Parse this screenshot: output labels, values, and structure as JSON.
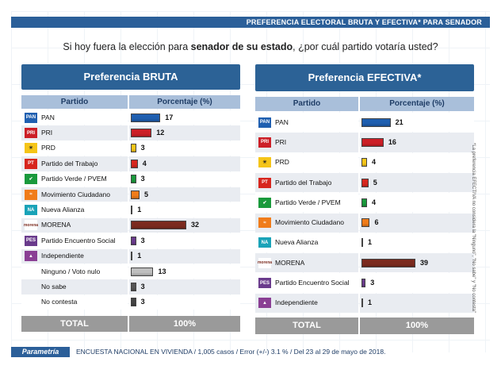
{
  "header": {
    "title": "PREFERENCIA ELECTORAL BRUTA Y EFECTIVA* PARA SENADOR"
  },
  "question": {
    "before": "Si hoy fuera la elección para ",
    "bold": "senador de su estado",
    "after": ", ¿por cuál partido votaría usted?"
  },
  "colors": {
    "header_blue": "#2c6296",
    "column_header": "#a9bfda",
    "total_grey": "#9a9a9a",
    "PAN": "#1f5fb0",
    "PRI": "#cc1f27",
    "PRD": "#f5c518",
    "PT": "#d7261e",
    "PVEM": "#1a9a3c",
    "MC": "#f07c1a",
    "NA": "#19a3b8",
    "MORENA": "#7b2a1e",
    "PES": "#6a3b8c",
    "IND": "#8a3f94",
    "NINGUNO": "#bfbfbf",
    "NOSABE": "#555555",
    "NOCONTESTA": "#444444"
  },
  "side_note": "*La preferencia EFECTIVA no considera la \"Ninguno\", \"No sabe\" y \"No contesta\"",
  "footer": {
    "logo": "Parametría",
    "text": "ENCUESTA NACIONAL EN VIVIENDA / 1,005 casos / Error (+/-) 3.1 % / Del 23 al 29 de mayo de 2018."
  },
  "chart_data": [
    {
      "type": "bar",
      "title": "Preferencia BRUTA",
      "col_party": "Partido",
      "col_pct": "Porcentaje (%)",
      "total_label": "TOTAL",
      "total_value": "100%",
      "rows": [
        {
          "party": "PAN",
          "icon": "pan-logo-icon",
          "color_key": "PAN",
          "value": 17
        },
        {
          "party": "PRI",
          "icon": "pri-logo-icon",
          "color_key": "PRI",
          "value": 12
        },
        {
          "party": "PRD",
          "icon": "prd-logo-icon",
          "color_key": "PRD",
          "value": 3
        },
        {
          "party": "Partido del Trabajo",
          "icon": "pt-logo-icon",
          "color_key": "PT",
          "value": 4
        },
        {
          "party": "Partido Verde / PVEM",
          "icon": "pvem-logo-icon",
          "color_key": "PVEM",
          "value": 3
        },
        {
          "party": "Movimiento Ciudadano",
          "icon": "mc-logo-icon",
          "color_key": "MC",
          "value": 5
        },
        {
          "party": "Nueva Alianza",
          "icon": "na-logo-icon",
          "color_key": "NA",
          "value": 1
        },
        {
          "party": "MORENA",
          "icon": "morena-logo-icon",
          "color_key": "MORENA",
          "value": 32
        },
        {
          "party": "Partido Encuentro Social",
          "icon": "pes-logo-icon",
          "color_key": "PES",
          "value": 3
        },
        {
          "party": "Independiente",
          "icon": "independiente-icon",
          "color_key": "IND",
          "value": 1
        },
        {
          "party": "Ninguno / Voto nulo",
          "icon": "",
          "color_key": "NINGUNO",
          "value": 13
        },
        {
          "party": "No sabe",
          "icon": "",
          "color_key": "NOSABE",
          "value": 3
        },
        {
          "party": "No contesta",
          "icon": "",
          "color_key": "NOCONTESTA",
          "value": 3
        }
      ]
    },
    {
      "type": "bar",
      "title": "Preferencia EFECTIVA*",
      "col_party": "Partido",
      "col_pct": "Porcentaje (%)",
      "total_label": "TOTAL",
      "total_value": "100%",
      "rows": [
        {
          "party": "PAN",
          "icon": "pan-logo-icon",
          "color_key": "PAN",
          "value": 21
        },
        {
          "party": "PRI",
          "icon": "pri-logo-icon",
          "color_key": "PRI",
          "value": 16
        },
        {
          "party": "PRD",
          "icon": "prd-logo-icon",
          "color_key": "PRD",
          "value": 4
        },
        {
          "party": "Partido del Trabajo",
          "icon": "pt-logo-icon",
          "color_key": "PT",
          "value": 5
        },
        {
          "party": "Partido Verde / PVEM",
          "icon": "pvem-logo-icon",
          "color_key": "PVEM",
          "value": 4
        },
        {
          "party": "Movimiento Ciudadano",
          "icon": "mc-logo-icon",
          "color_key": "MC",
          "value": 6
        },
        {
          "party": "Nueva Alianza",
          "icon": "na-logo-icon",
          "color_key": "NA",
          "value": 1
        },
        {
          "party": "MORENA",
          "icon": "morena-logo-icon",
          "color_key": "MORENA",
          "value": 39
        },
        {
          "party": "Partido Encuentro Social",
          "icon": "pes-logo-icon",
          "color_key": "PES",
          "value": 3
        },
        {
          "party": "Independiente",
          "icon": "independiente-icon",
          "color_key": "IND",
          "value": 1
        }
      ]
    }
  ]
}
